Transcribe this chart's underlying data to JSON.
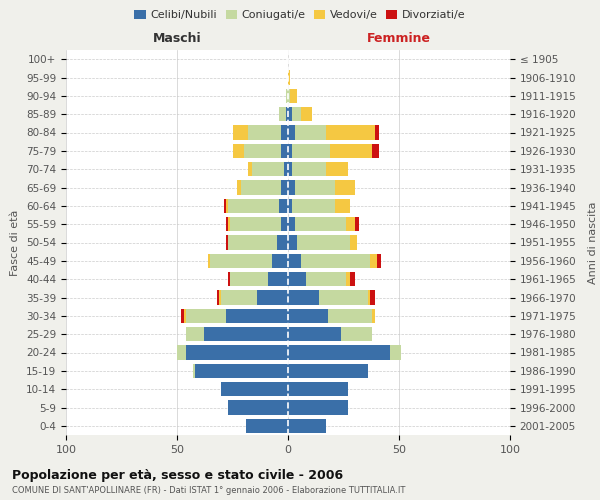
{
  "age_groups": [
    "0-4",
    "5-9",
    "10-14",
    "15-19",
    "20-24",
    "25-29",
    "30-34",
    "35-39",
    "40-44",
    "45-49",
    "50-54",
    "55-59",
    "60-64",
    "65-69",
    "70-74",
    "75-79",
    "80-84",
    "85-89",
    "90-94",
    "95-99",
    "100+"
  ],
  "birth_years": [
    "2001-2005",
    "1996-2000",
    "1991-1995",
    "1986-1990",
    "1981-1985",
    "1976-1980",
    "1971-1975",
    "1966-1970",
    "1961-1965",
    "1956-1960",
    "1951-1955",
    "1946-1950",
    "1941-1945",
    "1936-1940",
    "1931-1935",
    "1926-1930",
    "1921-1925",
    "1916-1920",
    "1911-1915",
    "1906-1910",
    "≤ 1905"
  ],
  "maschi": {
    "celibi": [
      19,
      27,
      30,
      42,
      46,
      38,
      28,
      14,
      9,
      7,
      5,
      3,
      4,
      3,
      2,
      3,
      3,
      1,
      0,
      0,
      0
    ],
    "coniugati": [
      0,
      0,
      0,
      1,
      4,
      8,
      18,
      16,
      17,
      28,
      22,
      23,
      23,
      18,
      14,
      17,
      15,
      3,
      1,
      0,
      0
    ],
    "vedovi": [
      0,
      0,
      0,
      0,
      0,
      0,
      1,
      1,
      0,
      1,
      0,
      1,
      1,
      2,
      2,
      5,
      7,
      0,
      0,
      0,
      0
    ],
    "divorziati": [
      0,
      0,
      0,
      0,
      0,
      0,
      1,
      1,
      1,
      0,
      1,
      1,
      1,
      0,
      0,
      0,
      0,
      0,
      0,
      0,
      0
    ]
  },
  "femmine": {
    "nubili": [
      17,
      27,
      27,
      36,
      46,
      24,
      18,
      14,
      8,
      6,
      4,
      3,
      2,
      3,
      2,
      2,
      3,
      2,
      0,
      0,
      0
    ],
    "coniugate": [
      0,
      0,
      0,
      0,
      5,
      14,
      20,
      22,
      18,
      31,
      24,
      23,
      19,
      18,
      15,
      17,
      14,
      4,
      1,
      0,
      0
    ],
    "vedove": [
      0,
      0,
      0,
      0,
      0,
      0,
      1,
      1,
      2,
      3,
      3,
      4,
      7,
      9,
      10,
      19,
      22,
      5,
      3,
      1,
      0
    ],
    "divorziate": [
      0,
      0,
      0,
      0,
      0,
      0,
      0,
      2,
      2,
      2,
      0,
      2,
      0,
      0,
      0,
      3,
      2,
      0,
      0,
      0,
      0
    ]
  },
  "colors": {
    "celibi": "#3a6fa8",
    "coniugati": "#c5d9a0",
    "vedovi": "#f5c842",
    "divorziati": "#cc1111"
  },
  "xlim": 100,
  "title": "Popolazione per età, sesso e stato civile - 2006",
  "subtitle": "COMUNE DI SANT'APOLLINARE (FR) - Dati ISTAT 1° gennaio 2006 - Elaborazione TUTTITALIA.IT",
  "ylabel_left": "Fasce di età",
  "ylabel_right": "Anni di nascita",
  "xlabel_left": "Maschi",
  "xlabel_right": "Femmine",
  "background_color": "#f0f0eb",
  "plot_bg_color": "#ffffff"
}
